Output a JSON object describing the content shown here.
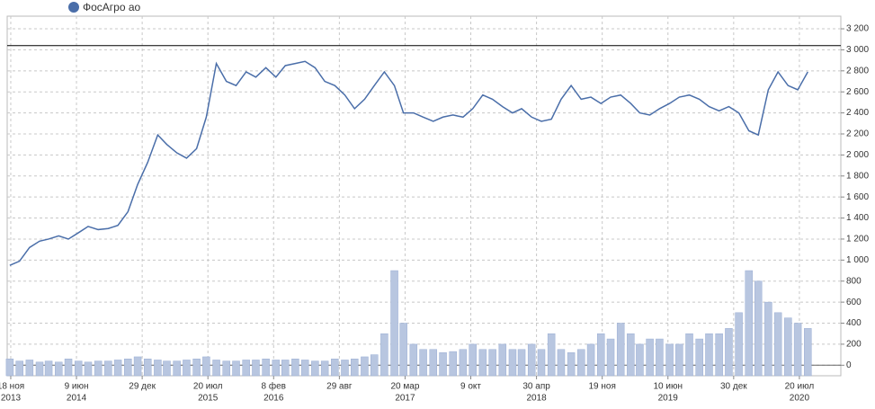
{
  "chart_data": {
    "type": "line",
    "legend": "ФосАгро ао",
    "x": [
      "2013-11",
      "2013-12",
      "2014-01",
      "2014-02",
      "2014-03",
      "2014-04",
      "2014-05",
      "2014-06",
      "2014-07",
      "2014-08",
      "2014-09",
      "2014-10",
      "2014-11",
      "2014-12",
      "2015-01",
      "2015-02",
      "2015-03",
      "2015-04",
      "2015-05",
      "2015-06",
      "2015-07",
      "2015-08",
      "2015-09",
      "2015-10",
      "2015-11",
      "2015-12",
      "2016-01",
      "2016-02",
      "2016-03",
      "2016-04",
      "2016-05",
      "2016-06",
      "2016-07",
      "2016-08",
      "2016-09",
      "2016-10",
      "2016-11",
      "2016-12",
      "2017-01",
      "2017-02",
      "2017-03",
      "2017-04",
      "2017-05",
      "2017-06",
      "2017-07",
      "2017-08",
      "2017-09",
      "2017-10",
      "2017-11",
      "2017-12",
      "2018-01",
      "2018-02",
      "2018-03",
      "2018-04",
      "2018-05",
      "2018-06",
      "2018-07",
      "2018-08",
      "2018-09",
      "2018-10",
      "2018-11",
      "2018-12",
      "2019-01",
      "2019-02",
      "2019-03",
      "2019-04",
      "2019-05",
      "2019-06",
      "2019-07",
      "2019-08",
      "2019-09",
      "2019-10",
      "2019-11",
      "2019-12",
      "2020-01",
      "2020-02",
      "2020-03",
      "2020-04",
      "2020-05",
      "2020-06",
      "2020-07",
      "2020-08"
    ],
    "series": [
      {
        "name": "ФосАгро ао",
        "color": "#4a6ea9",
        "values": [
          950,
          990,
          1120,
          1180,
          1200,
          1230,
          1200,
          1260,
          1320,
          1290,
          1300,
          1330,
          1460,
          1720,
          1930,
          2190,
          2100,
          2020,
          1970,
          2060,
          2360,
          2870,
          2700,
          2660,
          2790,
          2740,
          2830,
          2740,
          2850,
          2870,
          2890,
          2830,
          2700,
          2660,
          2570,
          2440,
          2530,
          2660,
          2790,
          2660,
          2400,
          2400,
          2360,
          2320,
          2360,
          2380,
          2360,
          2440,
          2570,
          2530,
          2460,
          2400,
          2440,
          2360,
          2320,
          2340,
          2530,
          2660,
          2530,
          2550,
          2490,
          2550,
          2570,
          2490,
          2400,
          2380,
          2440,
          2490,
          2550,
          2570,
          2530,
          2460,
          2420,
          2460,
          2400,
          2230,
          2190,
          2620,
          2790,
          2660,
          2620,
          2790
        ]
      },
      {
        "type": "bar",
        "color": "#b8c6e0",
        "values": [
          60,
          40,
          50,
          30,
          40,
          30,
          60,
          40,
          30,
          40,
          40,
          50,
          60,
          80,
          60,
          50,
          40,
          40,
          50,
          60,
          80,
          50,
          40,
          40,
          50,
          50,
          60,
          50,
          50,
          60,
          50,
          40,
          40,
          60,
          50,
          60,
          80,
          100,
          300,
          900,
          400,
          200,
          150,
          150,
          120,
          130,
          150,
          200,
          150,
          150,
          200,
          150,
          150,
          200,
          150,
          300,
          150,
          120,
          150,
          200,
          300,
          250,
          400,
          300,
          200,
          250,
          250,
          200,
          200,
          300,
          250,
          300,
          300,
          350,
          500,
          900,
          800,
          600,
          500,
          450,
          400,
          350
        ]
      }
    ],
    "reference_line": 3040,
    "xlim": [
      "2013-11-07",
      "2020-11-25"
    ],
    "xticks": [
      {
        "value": "2013-11-18",
        "label": "18 ноя",
        "year": "2013"
      },
      {
        "value": "2014-06-09",
        "label": "9 июн",
        "year": "2014"
      },
      {
        "value": "2014-12-29",
        "label": "29 дек"
      },
      {
        "value": "2015-07-20",
        "label": "20 июл",
        "year": "2015"
      },
      {
        "value": "2016-02-08",
        "label": "8 фев",
        "year": "2016"
      },
      {
        "value": "2016-08-29",
        "label": "29 авг"
      },
      {
        "value": "2017-03-20",
        "label": "20 мар",
        "year": "2017"
      },
      {
        "value": "2017-10-09",
        "label": "9 окт"
      },
      {
        "value": "2018-04-30",
        "label": "30 апр",
        "year": "2018"
      },
      {
        "value": "2018-11-19",
        "label": "19 ноя"
      },
      {
        "value": "2019-06-10",
        "label": "10 июн",
        "year": "2019"
      },
      {
        "value": "2019-12-30",
        "label": "30 дек"
      },
      {
        "value": "2020-07-20",
        "label": "20 июл",
        "year": "2020"
      }
    ],
    "ylim": [
      -100,
      3320
    ],
    "yticks": [
      0,
      200,
      400,
      600,
      800,
      {
        "value": 1000,
        "label": "1 000"
      },
      {
        "value": 1200,
        "label": "1 200"
      },
      {
        "value": 1400,
        "label": "1 400"
      },
      {
        "value": 1600,
        "label": "1 600"
      },
      {
        "value": 1800,
        "label": "1 800"
      },
      {
        "value": 2000,
        "label": "2 000"
      },
      {
        "value": 2200,
        "label": "2 200"
      },
      {
        "value": 2400,
        "label": "2 400"
      },
      {
        "value": 2600,
        "label": "2 600"
      },
      {
        "value": 2800,
        "label": "2 800"
      },
      {
        "value": 3000,
        "label": "3 000"
      },
      {
        "value": 3200,
        "label": "3 200"
      }
    ],
    "grid": true
  }
}
